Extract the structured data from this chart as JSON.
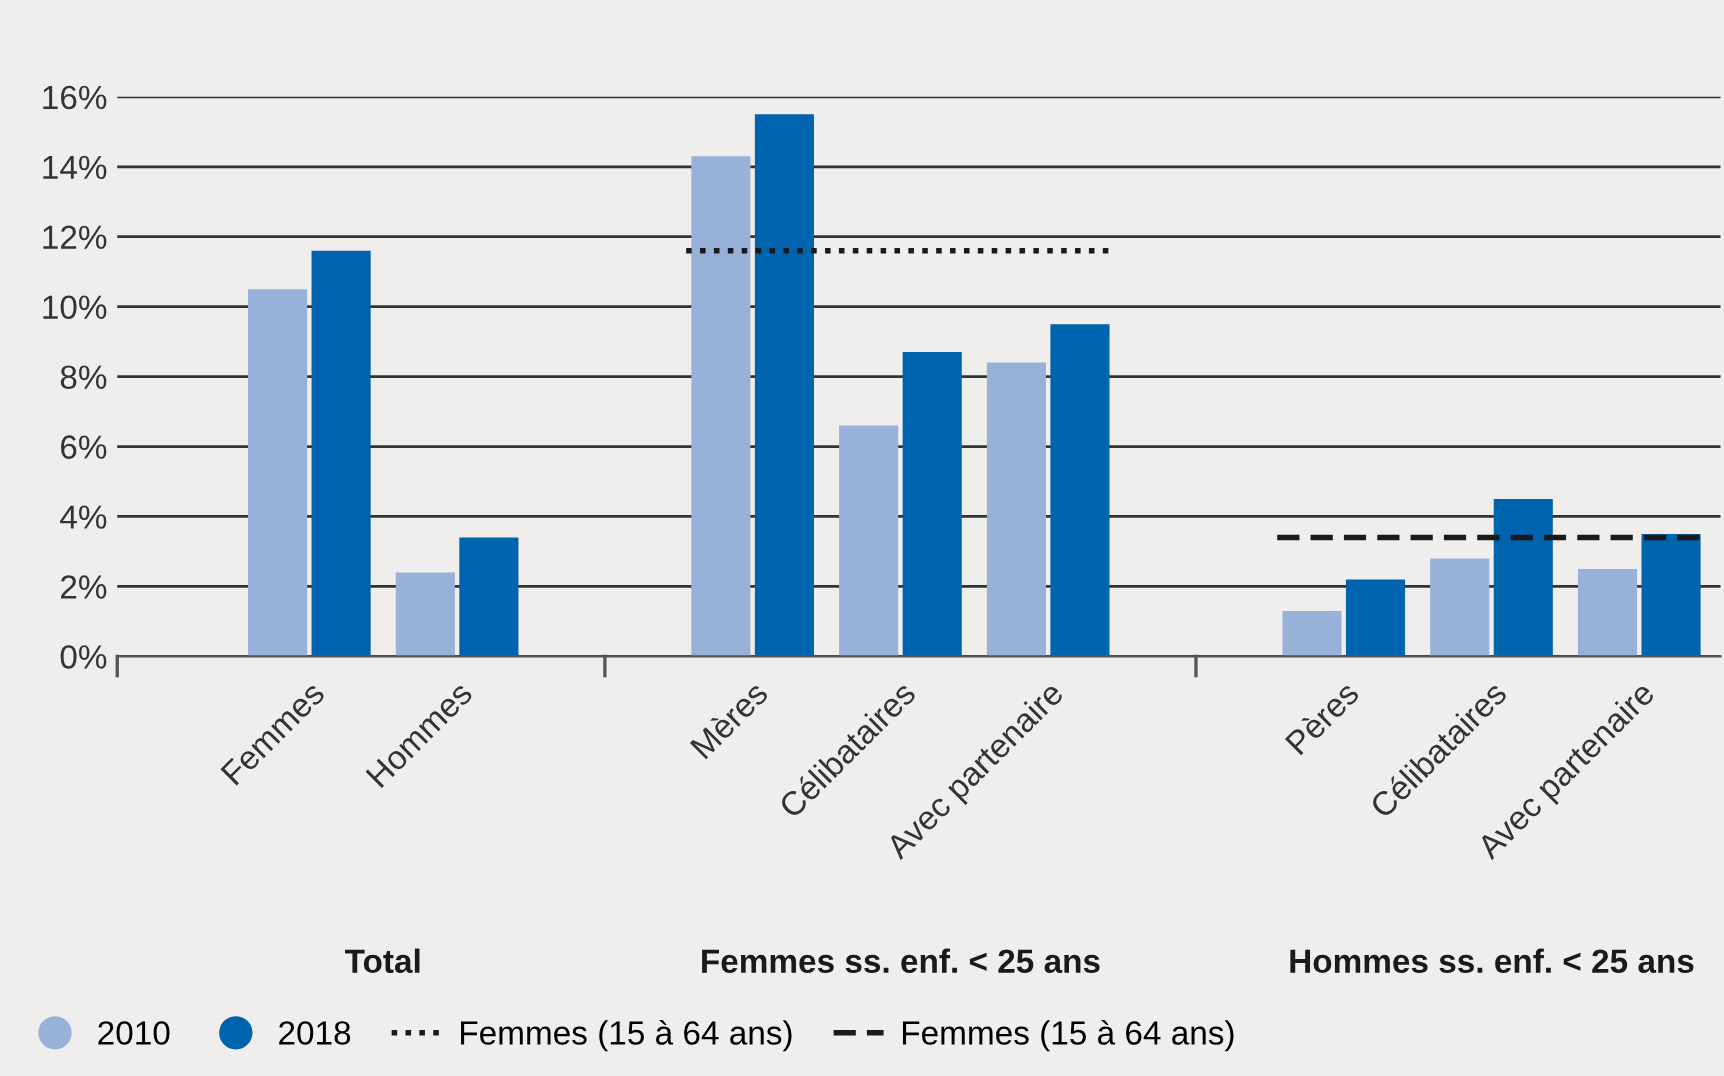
{
  "chart_data": {
    "type": "bar",
    "categories": [
      "Femmes",
      "Hommes",
      null,
      "Mères",
      "Célibataires",
      "Avec partenaire",
      null,
      "Pères",
      "Célibataires",
      "Avec partenaire"
    ],
    "series": [
      {
        "name": "2010",
        "color": "#98b1d8",
        "values": [
          10.5,
          2.4,
          null,
          14.3,
          6.6,
          8.4,
          null,
          1.3,
          2.8,
          2.5
        ]
      },
      {
        "name": "2018",
        "color": "#0063ad",
        "values": [
          11.6,
          3.4,
          null,
          15.5,
          8.7,
          9.5,
          null,
          2.2,
          4.5,
          3.5
        ]
      }
    ],
    "ylim": [
      0,
      16
    ],
    "yticks": [
      {
        "value": 0,
        "label": "0%"
      },
      {
        "value": 2,
        "label": "2%"
      },
      {
        "value": 4,
        "label": "4%"
      },
      {
        "value": 6,
        "label": "6%"
      },
      {
        "value": 8,
        "label": "8%"
      },
      {
        "value": 10,
        "label": "10%"
      },
      {
        "value": 12,
        "label": "12%"
      },
      {
        "value": 14,
        "label": "14%"
      },
      {
        "value": 16,
        "label": "16%"
      }
    ],
    "grid": "y",
    "ref_lines": [
      {
        "axis": "y",
        "value": 11.6,
        "label": "Femmes (15 à 64 ans)",
        "color": "#1a1a1a",
        "line_style": "dotted"
      },
      {
        "axis": "y",
        "value": 3.4,
        "label": "Femmes (15 à 64 ans)",
        "color": "#1a1a1a",
        "line_style": "dashed"
      }
    ],
    "annotations": [
      "Total",
      "Femmes ss. enf. < 25 ans",
      "Hommes ss. enf. < 25 ans"
    ],
    "legend": "bottom left"
  }
}
